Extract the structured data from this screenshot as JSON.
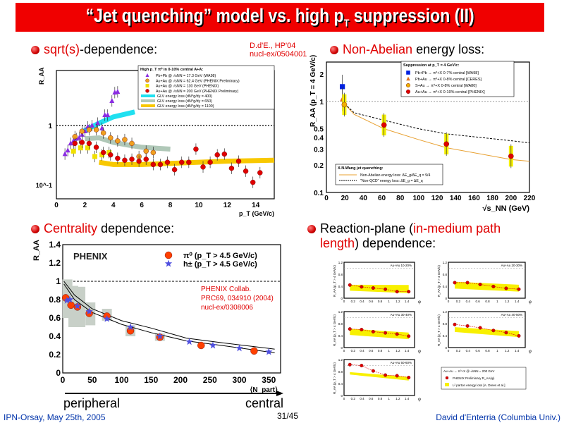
{
  "title": {
    "pre": "“Jet quenching” model vs. high p",
    "sub": "T",
    "post": " suppression (II)"
  },
  "bullets": {
    "b1": {
      "hl": "sqrt(s)",
      "rest": "-dependence:"
    },
    "b2": {
      "hl": "Non-Abelian",
      "rest": " energy loss:"
    },
    "b3": {
      "hl": "Centrality",
      "rest": " dependence:"
    },
    "b4": {
      "pre": "Reaction-plane (",
      "hl": "in-medium path length",
      "post": ") dependence:"
    }
  },
  "reference": {
    "line1": "D.d'E., HP'04",
    "line2": "nucl-ex/0504001"
  },
  "labels": {
    "peripheral": "peripheral",
    "central": "central"
  },
  "footer": {
    "left": "IPN-Orsay, May 25th, 2005",
    "page": "31/45",
    "right": "David d'Enterria (Columbia Univ.)"
  },
  "colors": {
    "title_bg": "#f00000",
    "accent": "#e00000",
    "footer": "#0033aa"
  },
  "chart_data": [
    {
      "type": "scatter",
      "ylabel": "R_AA",
      "xlabel": "p_T (GeV/c)",
      "yscale": "log",
      "xlim": [
        0,
        15.3
      ],
      "ylim": [
        0.058,
        8.5
      ],
      "xticks": [
        0,
        2,
        4,
        6,
        8,
        10,
        12,
        14
      ],
      "yticks": [
        "10^-1",
        "1"
      ],
      "legend_title": "High p_T π⁰ in 0-10% central A+A:",
      "series": [
        {
          "name": "Pb+Pb @ √sNN = 17.3 GeV (WA98)",
          "marker": "triangle",
          "color": "#8a2be2",
          "points": [
            [
              0.6,
              0.33
            ],
            [
              0.8,
              0.38
            ],
            [
              1.0,
              0.5
            ],
            [
              1.2,
              0.55
            ],
            [
              1.4,
              0.6
            ],
            [
              1.6,
              0.62
            ],
            [
              1.8,
              0.7
            ],
            [
              2.0,
              0.8
            ],
            [
              2.2,
              0.95
            ],
            [
              2.5,
              1.0
            ],
            [
              2.9,
              1.1
            ],
            [
              3.2,
              0.9
            ],
            [
              3.4,
              1.5
            ],
            [
              3.6,
              1.5
            ],
            [
              3.9,
              2.6
            ],
            [
              4.1,
              3.6
            ],
            [
              4.3,
              3.7
            ]
          ]
        },
        {
          "name": "Au+Au @ √sNN = 62.4 GeV (PHENIX Preliminary)",
          "marker": "circle",
          "color": "#f0a020",
          "points": [
            [
              1.3,
              0.65
            ],
            [
              1.8,
              0.8
            ],
            [
              2.3,
              0.85
            ],
            [
              2.8,
              0.85
            ],
            [
              3.3,
              0.75
            ],
            [
              3.8,
              0.62
            ],
            [
              4.3,
              0.55
            ],
            [
              4.8,
              0.58
            ],
            [
              5.3,
              0.5
            ],
            [
              5.8,
              0.3
            ],
            [
              6.3,
              0.37
            ],
            [
              6.8,
              0.35
            ]
          ]
        },
        {
          "name": "Au+Au @ √sNN = 130 GeV (PHENIX)",
          "marker": "square",
          "color": "#f0e000",
          "points": [
            [
              1.2,
              0.37
            ],
            [
              1.7,
              0.42
            ],
            [
              2.2,
              0.42
            ],
            [
              2.7,
              0.3
            ],
            [
              3.2,
              0.32
            ],
            [
              3.7,
              0.35
            ]
          ]
        },
        {
          "name": "Au+Au @ √sNN = 200 GeV (PHENIX Preliminary)",
          "marker": "circle",
          "color": "#e00000",
          "points": [
            [
              1.3,
              0.5
            ],
            [
              1.8,
              0.52
            ],
            [
              2.3,
              0.5
            ],
            [
              2.8,
              0.43
            ],
            [
              3.3,
              0.35
            ],
            [
              3.8,
              0.32
            ],
            [
              4.3,
              0.28
            ],
            [
              4.8,
              0.26
            ],
            [
              5.3,
              0.27
            ],
            [
              5.8,
              0.25
            ],
            [
              6.3,
              0.27
            ],
            [
              6.8,
              0.22
            ],
            [
              7.3,
              0.22
            ],
            [
              7.8,
              0.24
            ],
            [
              8.3,
              0.18
            ],
            [
              8.8,
              0.24
            ],
            [
              9.3,
              0.24
            ],
            [
              9.8,
              0.4
            ],
            [
              10.3,
              0.2
            ],
            [
              10.8,
              0.24
            ],
            [
              11.3,
              0.32
            ],
            [
              11.8,
              0.33
            ],
            [
              12.3,
              0.19
            ],
            [
              12.8,
              0.25
            ],
            [
              13.3,
              0.17
            ],
            [
              13.8,
              0.11
            ],
            [
              14.3,
              0.16
            ]
          ]
        }
      ],
      "bands": [
        {
          "name": "GLV energy loss (dN^g/dy = 400)",
          "color": "#20e0f0",
          "points": [
            [
              1.9,
              0.8
            ],
            [
              3,
              1.1
            ],
            [
              4,
              1.4
            ],
            [
              5.5,
              1.7
            ]
          ]
        },
        {
          "name": "GLV energy loss (dN^g/dy = 650)",
          "color": "#b0c8b8",
          "points": [
            [
              2,
              0.6
            ],
            [
              3,
              0.62
            ],
            [
              4,
              0.52
            ],
            [
              5,
              0.47
            ],
            [
              6,
              0.43
            ],
            [
              8,
              0.4
            ]
          ]
        },
        {
          "name": "GLV energy loss (dN^g/dy = 1100)",
          "color": "#f8c800",
          "points": [
            [
              3,
              0.24
            ],
            [
              4,
              0.22
            ],
            [
              6,
              0.22
            ],
            [
              8,
              0.23
            ],
            [
              10,
              0.24
            ],
            [
              12,
              0.25
            ],
            [
              15.3,
              0.26
            ]
          ]
        }
      ]
    },
    {
      "type": "scatter",
      "ylabel": "R_AA (p_T = 4 GeV/c)",
      "xlabel": "√s_NN (GeV)",
      "yscale": "log",
      "xlim": [
        0,
        220
      ],
      "ylim": [
        0.1,
        2.7
      ],
      "xticks": [
        0,
        20,
        40,
        60,
        80,
        100,
        120,
        140,
        160,
        180,
        200,
        220
      ],
      "yticks": [
        0.1,
        0.2,
        0.3,
        0.4,
        0.5,
        1,
        2
      ],
      "legend_title": "Suppression at p_T = 4 GeV/c:",
      "series": [
        {
          "name": "Pb+Pb → π⁰+X 0-7% central [WA98]",
          "marker": "square",
          "color": "#0020e0",
          "points": [
            [
              17.3,
              1.45
            ]
          ]
        },
        {
          "name": "Pb+Au → π⁰+X 0-8% central [CERES]",
          "marker": "triangle",
          "color": "#e07020",
          "points": [
            [
              17.3,
              1.05
            ]
          ]
        },
        {
          "name": "S+Au → π⁰+X 0-8% central [WA80]",
          "marker": "circle",
          "color": "#f0b000",
          "points": [
            [
              19.4,
              0.92
            ]
          ]
        },
        {
          "name": "Au+Au → π⁰+X 0-10% central [PHENIX]",
          "marker": "circle",
          "color": "#e00000",
          "points": [
            [
              62.4,
              0.55
            ],
            [
              130,
              0.34
            ],
            [
              200,
              0.25
            ]
          ]
        }
      ],
      "curves_title": "X.N.Wang jet quenching:",
      "curves": [
        {
          "name": "Non-Abelian energy loss: ΔE_g/ΔE_q = 9/4",
          "color": "#e8a030",
          "style": "solid",
          "points": [
            [
              17,
              1.0
            ],
            [
              30,
              0.72
            ],
            [
              62.4,
              0.5
            ],
            [
              100,
              0.38
            ],
            [
              130,
              0.31
            ],
            [
              200,
              0.23
            ],
            [
              220,
              0.22
            ]
          ]
        },
        {
          "name": "\"Non-QCD\" energy loss: ΔE_g = ΔE_q",
          "color": "#000000",
          "style": "dashed",
          "points": [
            [
              17,
              1.0
            ],
            [
              30,
              0.75
            ],
            [
              62.4,
              0.62
            ],
            [
              100,
              0.5
            ],
            [
              130,
              0.44
            ],
            [
              200,
              0.37
            ],
            [
              220,
              0.35
            ]
          ]
        }
      ]
    },
    {
      "type": "scatter",
      "ylabel": "R_AA",
      "xlabel": "⟨N_part⟩",
      "xlim": [
        0,
        370
      ],
      "ylim": [
        0,
        1.4
      ],
      "xticks": [
        0,
        50,
        100,
        150,
        200,
        250,
        300,
        350
      ],
      "yticks": [
        0,
        0.2,
        0.4,
        0.6,
        0.8,
        1,
        1.2,
        1.4
      ],
      "logo": "PHENIX",
      "annotation": [
        "PHENIX Collab.",
        "PRC69, 034910 (2004)",
        "nucl-ex/0308006"
      ],
      "series": [
        {
          "name": "π⁰ (p_T > 4.5 GeV/c)",
          "marker": "circle",
          "color": "#ff4000",
          "points": [
            [
              5,
              0.82
            ],
            [
              14,
              0.74
            ],
            [
              25,
              0.72
            ],
            [
              45,
              0.65
            ],
            [
              75,
              0.62
            ],
            [
              115,
              0.46
            ],
            [
              165,
              0.39
            ],
            [
              235,
              0.3
            ],
            [
              325,
              0.24
            ]
          ]
        },
        {
          "name": "h± (p_T > 4.5 GeV/c)",
          "marker": "star",
          "color": "#5050e0",
          "points": [
            [
              7,
              0.79
            ],
            [
              12,
              0.8
            ],
            [
              25,
              0.73
            ],
            [
              45,
              0.67
            ],
            [
              75,
              0.59
            ],
            [
              115,
              0.5
            ],
            [
              165,
              0.4
            ],
            [
              215,
              0.34
            ],
            [
              255,
              0.3
            ],
            [
              300,
              0.27
            ],
            [
              350,
              0.23
            ]
          ]
        }
      ],
      "curves": [
        {
          "points": [
            [
              2,
              1.0
            ],
            [
              20,
              0.85
            ],
            [
              50,
              0.7
            ],
            [
              100,
              0.57
            ],
            [
              150,
              0.49
            ],
            [
              210,
              0.38
            ],
            [
              270,
              0.33
            ],
            [
              360,
              0.26
            ]
          ]
        },
        {
          "points": [
            [
              2,
              0.97
            ],
            [
              20,
              0.8
            ],
            [
              50,
              0.66
            ],
            [
              100,
              0.53
            ],
            [
              150,
              0.44
            ],
            [
              210,
              0.35
            ],
            [
              270,
              0.3
            ],
            [
              360,
              0.22
            ]
          ]
        }
      ]
    },
    {
      "type": "scatter",
      "ylabel": "R_AA (p_T > 4 GeV/c)",
      "xlabel": "φ",
      "xlim": [
        0,
        1.57
      ],
      "ylim": [
        0,
        1.2
      ],
      "xticks": [
        0,
        0.2,
        0.4,
        0.6,
        0.8,
        1,
        1.2,
        1.4
      ],
      "yticks": [
        0,
        0.2,
        0.4,
        0.6,
        0.8,
        1,
        1.2
      ],
      "x": [
        0.13,
        0.39,
        0.65,
        0.92,
        1.18,
        1.44
      ],
      "panels": [
        {
          "label": "Au+Au 10-20%",
          "values": [
            0.44,
            0.38,
            0.34,
            0.3,
            0.22,
            0.22
          ],
          "band": [
            [
              0.25,
              0.45
            ],
            [
              0.17,
              0.44
            ]
          ]
        },
        {
          "label": "Au+Au 20-30%",
          "values": [
            0.52,
            0.52,
            0.46,
            0.39,
            0.33,
            0.3
          ],
          "band": [
            [
              0.32,
              0.55
            ],
            [
              0.22,
              0.45
            ]
          ]
        },
        {
          "label": "Au+Au 30-40%",
          "values": [
            0.62,
            0.6,
            0.53,
            0.49,
            0.45,
            0.38
          ],
          "band": [
            [
              0.42,
              0.63
            ],
            [
              0.28,
              0.5
            ]
          ]
        },
        {
          "label": "Au+Au 40-50%",
          "values": [
            0.77,
            0.72,
            0.66,
            0.57,
            0.5,
            0.39
          ],
          "band": [
            [
              0.52,
              0.68
            ],
            [
              0.35,
              0.55
            ]
          ]
        },
        {
          "label": "Au+Au 50-60%",
          "values": [
            1.03,
            1.0,
            0.82,
            0.68,
            0.66,
            0.6
          ],
          "band": [
            [
              0.7,
              0.78
            ],
            [
              0.5,
              0.62
            ]
          ]
        }
      ],
      "legend": {
        "title": "Au+Au → π⁰+X @ √sNN = 200 GeV",
        "items": [
          "PHENIX Preliminary R_AA(φ)",
          "L² parton energy loss [A. Drees et al.]"
        ]
      }
    }
  ]
}
